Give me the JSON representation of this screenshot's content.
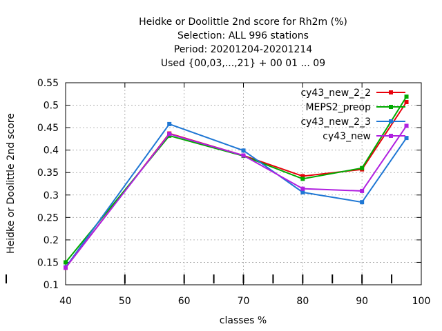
{
  "chart_data": {
    "type": "line",
    "title_lines": [
      "Heidke or Doolittle 2nd score  for Rh2m (%)",
      "Selection: ALL    996 stations",
      "Period: 20201204-20201214",
      "Used {00,03,...,21} + 00 01 ... 09"
    ],
    "xlabel": "classes %",
    "ylabel": "Heidke or Doolittle 2nd score",
    "xlim": [
      40,
      100
    ],
    "ylim": [
      0.1,
      0.55
    ],
    "x_ticks": [
      40,
      50,
      60,
      70,
      80,
      90,
      100
    ],
    "y_ticks": [
      0.1,
      0.15,
      0.2,
      0.25,
      0.3,
      0.35,
      0.4,
      0.45,
      0.5,
      0.55
    ],
    "x_tick_labels": [
      "40",
      "50",
      "60",
      "70",
      "80",
      "90",
      "100"
    ],
    "y_tick_labels": [
      "0.1",
      "0.15",
      "0.2",
      "0.25",
      "0.3",
      "0.35",
      "0.4",
      "0.45",
      "0.5",
      "0.55"
    ],
    "extra_bottom_ticks": [
      40,
      50,
      60,
      65,
      70,
      75,
      80,
      85,
      90,
      95
    ],
    "grid": true,
    "legend_position": "top-right",
    "x": [
      40,
      57.5,
      70,
      80,
      90,
      97.5
    ],
    "series": [
      {
        "name": "cy43_new_2_2",
        "color": "#e8000b",
        "values": [
          0.138,
          0.437,
          0.388,
          0.342,
          0.357,
          0.507
        ]
      },
      {
        "name": "MEPS2_preop",
        "color": "#00aa00",
        "values": [
          0.15,
          0.432,
          0.387,
          0.336,
          0.36,
          0.519
        ]
      },
      {
        "name": "cy43_new_2_3",
        "color": "#1f77d4",
        "values": [
          0.139,
          0.458,
          0.399,
          0.306,
          0.284,
          0.427
        ]
      },
      {
        "name": "cy43_new",
        "color": "#b020e0",
        "values": [
          0.138,
          0.436,
          0.388,
          0.314,
          0.309,
          0.454
        ]
      }
    ]
  }
}
